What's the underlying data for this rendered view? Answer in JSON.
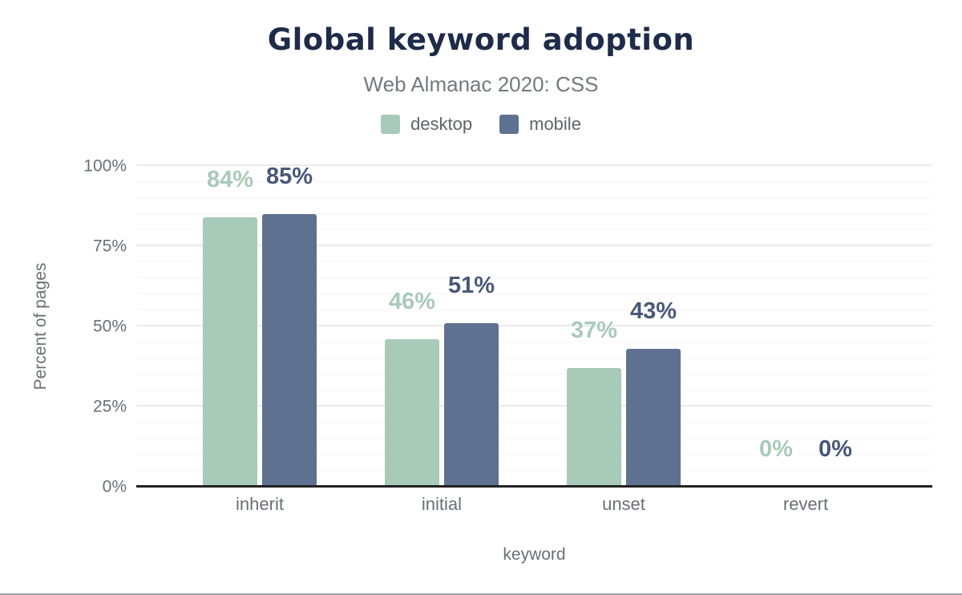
{
  "chart_data": {
    "type": "bar",
    "title": "Global keyword adoption",
    "subtitle": "Web Almanac 2020: CSS",
    "categories": [
      "inherit",
      "initial",
      "unset",
      "revert"
    ],
    "series": [
      {
        "name": "desktop",
        "color": "#a8cab8",
        "label_color": "#a8cab8",
        "values": [
          84,
          46,
          37,
          0
        ],
        "labels": [
          "84%",
          "46%",
          "37%",
          "0%"
        ]
      },
      {
        "name": "mobile",
        "color": "#5f7190",
        "label_color": "#485878",
        "values": [
          85,
          51,
          43,
          0
        ],
        "labels": [
          "85%",
          "51%",
          "43%",
          "0%"
        ]
      }
    ],
    "xlabel": "keyword",
    "ylabel": "Percent of pages",
    "ylim": [
      0,
      100
    ],
    "yticks": [
      {
        "value": 0,
        "label": "0%"
      },
      {
        "value": 25,
        "label": "25%"
      },
      {
        "value": 50,
        "label": "50%"
      },
      {
        "value": 75,
        "label": "75%"
      },
      {
        "value": 100,
        "label": "100%"
      }
    ],
    "grid": {
      "minor_step": 5,
      "major_step": 25,
      "on": true
    },
    "legend_position": "top",
    "colors": {
      "title": "#1e2b49",
      "subtitle": "#75797e",
      "tick_labels": "#6b7076",
      "axis_line": "#222222"
    }
  }
}
